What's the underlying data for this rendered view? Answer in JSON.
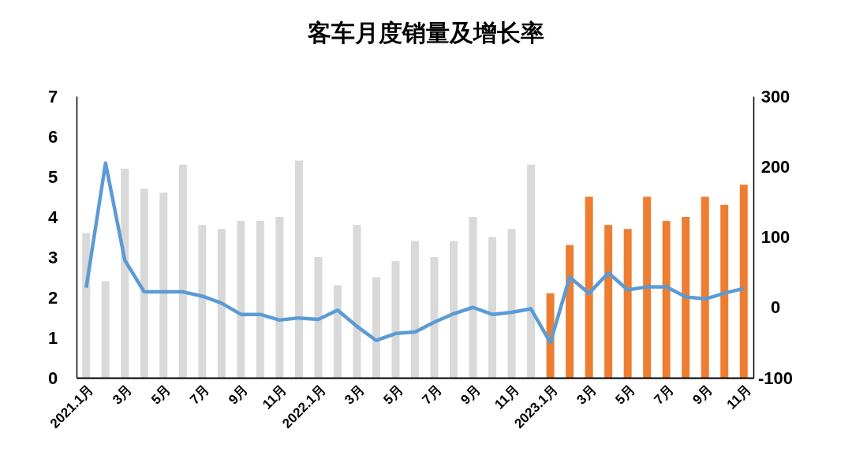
{
  "chart_data": {
    "type": "bar",
    "title": "客车月度销量及增长率",
    "categories": [
      "2021.1月",
      null,
      "3月",
      null,
      "5月",
      null,
      "7月",
      null,
      "9月",
      null,
      "11月",
      null,
      "2022.1月",
      null,
      "3月",
      null,
      "5月",
      null,
      "7月",
      null,
      "9月",
      null,
      "11月",
      null,
      "2023.1月",
      null,
      "3月",
      null,
      "5月",
      null,
      "7月",
      null,
      "9月",
      null,
      "11月"
    ],
    "series": [
      {
        "values": [
          3.6,
          2.4,
          5.2,
          4.7,
          4.6,
          5.3,
          3.8,
          3.7,
          3.9,
          3.9,
          4.0,
          5.4,
          3.0,
          2.3,
          3.8,
          2.5,
          2.9,
          3.4,
          3.0,
          3.4,
          4.0,
          3.5,
          3.7,
          5.3,
          2.1,
          3.3,
          4.5,
          3.8,
          3.7,
          4.5,
          3.9,
          4.0,
          4.5,
          4.3,
          4.8
        ],
        "colors": [
          "#d9d9d9",
          "#d9d9d9",
          "#d9d9d9",
          "#d9d9d9",
          "#d9d9d9",
          "#d9d9d9",
          "#d9d9d9",
          "#d9d9d9",
          "#d9d9d9",
          "#d9d9d9",
          "#d9d9d9",
          "#d9d9d9",
          "#d9d9d9",
          "#d9d9d9",
          "#d9d9d9",
          "#d9d9d9",
          "#d9d9d9",
          "#d9d9d9",
          "#d9d9d9",
          "#d9d9d9",
          "#d9d9d9",
          "#d9d9d9",
          "#d9d9d9",
          "#d9d9d9",
          "#ed7d31",
          "#ed7d31",
          "#ed7d31",
          "#ed7d31",
          "#ed7d31",
          "#ed7d31",
          "#ed7d31",
          "#ed7d31",
          "#ed7d31",
          "#ed7d31",
          "#ed7d31"
        ]
      },
      {
        "type": "line",
        "axis": "y2",
        "color": "#5b9bd5",
        "values": [
          28,
          205,
          67,
          22,
          22,
          22,
          16,
          6,
          -10,
          -10,
          -18,
          -15,
          -17,
          -4,
          -27,
          -47,
          -37,
          -35,
          -21,
          -9,
          0,
          -10,
          -7,
          -2,
          -50,
          43,
          20,
          49,
          25,
          29,
          29,
          15,
          12,
          20,
          27
        ]
      }
    ],
    "ylim": [
      0,
      7
    ],
    "yticks": [
      0,
      1,
      2,
      3,
      4,
      5,
      6,
      7
    ],
    "y2lim": [
      -100,
      300
    ],
    "y2ticks": [
      -100,
      0,
      100,
      200,
      300
    ],
    "grid": false,
    "marker": "none",
    "line_style": "solid"
  }
}
